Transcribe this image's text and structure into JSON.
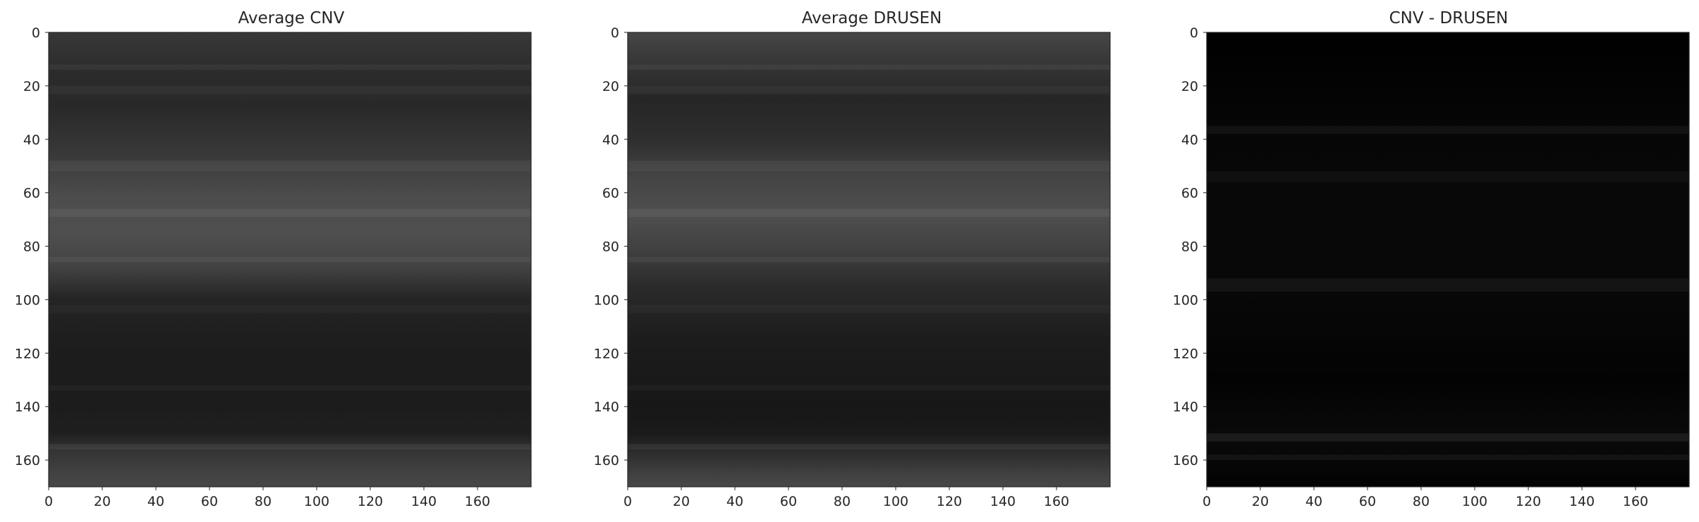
{
  "chart_data": [
    {
      "type": "heatmap",
      "title": "Average CNV",
      "colormap": "gray",
      "image_shape": [
        170,
        180
      ],
      "xlim": [
        0,
        180
      ],
      "ylim": [
        170,
        0
      ],
      "x_ticks": [
        0,
        20,
        40,
        60,
        80,
        100,
        120,
        140,
        160
      ],
      "y_ticks": [
        0,
        20,
        40,
        60,
        80,
        100,
        120,
        140,
        160
      ],
      "grid": false,
      "row_intensity_profile": [
        {
          "row": 0,
          "value": 0.22
        },
        {
          "row": 15,
          "value": 0.17
        },
        {
          "row": 28,
          "value": 0.16
        },
        {
          "row": 45,
          "value": 0.22
        },
        {
          "row": 62,
          "value": 0.3
        },
        {
          "row": 75,
          "value": 0.31
        },
        {
          "row": 88,
          "value": 0.26
        },
        {
          "row": 100,
          "value": 0.14
        },
        {
          "row": 120,
          "value": 0.11
        },
        {
          "row": 140,
          "value": 0.11
        },
        {
          "row": 150,
          "value": 0.12
        },
        {
          "row": 156,
          "value": 0.2
        },
        {
          "row": 165,
          "value": 0.26
        },
        {
          "row": 170,
          "value": 0.28
        }
      ]
    },
    {
      "type": "heatmap",
      "title": "Average DRUSEN",
      "colormap": "gray",
      "image_shape": [
        170,
        180
      ],
      "xlim": [
        0,
        180
      ],
      "ylim": [
        170,
        0
      ],
      "x_ticks": [
        0,
        20,
        40,
        60,
        80,
        100,
        120,
        140,
        160
      ],
      "y_ticks": [
        0,
        20,
        40,
        60,
        80,
        100,
        120,
        140,
        160
      ],
      "grid": false,
      "row_intensity_profile": [
        {
          "row": 0,
          "value": 0.28
        },
        {
          "row": 10,
          "value": 0.22
        },
        {
          "row": 25,
          "value": 0.15
        },
        {
          "row": 40,
          "value": 0.18
        },
        {
          "row": 55,
          "value": 0.27
        },
        {
          "row": 68,
          "value": 0.31
        },
        {
          "row": 80,
          "value": 0.26
        },
        {
          "row": 95,
          "value": 0.17
        },
        {
          "row": 115,
          "value": 0.11
        },
        {
          "row": 140,
          "value": 0.09
        },
        {
          "row": 150,
          "value": 0.1
        },
        {
          "row": 158,
          "value": 0.18
        },
        {
          "row": 166,
          "value": 0.26
        },
        {
          "row": 170,
          "value": 0.28
        }
      ]
    },
    {
      "type": "heatmap",
      "title": "CNV - DRUSEN",
      "colormap": "gray",
      "image_shape": [
        170,
        180
      ],
      "xlim": [
        0,
        180
      ],
      "ylim": [
        170,
        0
      ],
      "x_ticks": [
        0,
        20,
        40,
        60,
        80,
        100,
        120,
        140,
        160
      ],
      "y_ticks": [
        0,
        20,
        40,
        60,
        80,
        100,
        120,
        140,
        160
      ],
      "grid": false,
      "row_intensity_profile": [
        {
          "row": 0,
          "value": 0.0
        },
        {
          "row": 30,
          "value": 0.02
        },
        {
          "row": 60,
          "value": 0.03
        },
        {
          "row": 95,
          "value": 0.03
        },
        {
          "row": 130,
          "value": 0.01
        },
        {
          "row": 152,
          "value": 0.04
        },
        {
          "row": 170,
          "value": 0.01
        }
      ]
    }
  ]
}
